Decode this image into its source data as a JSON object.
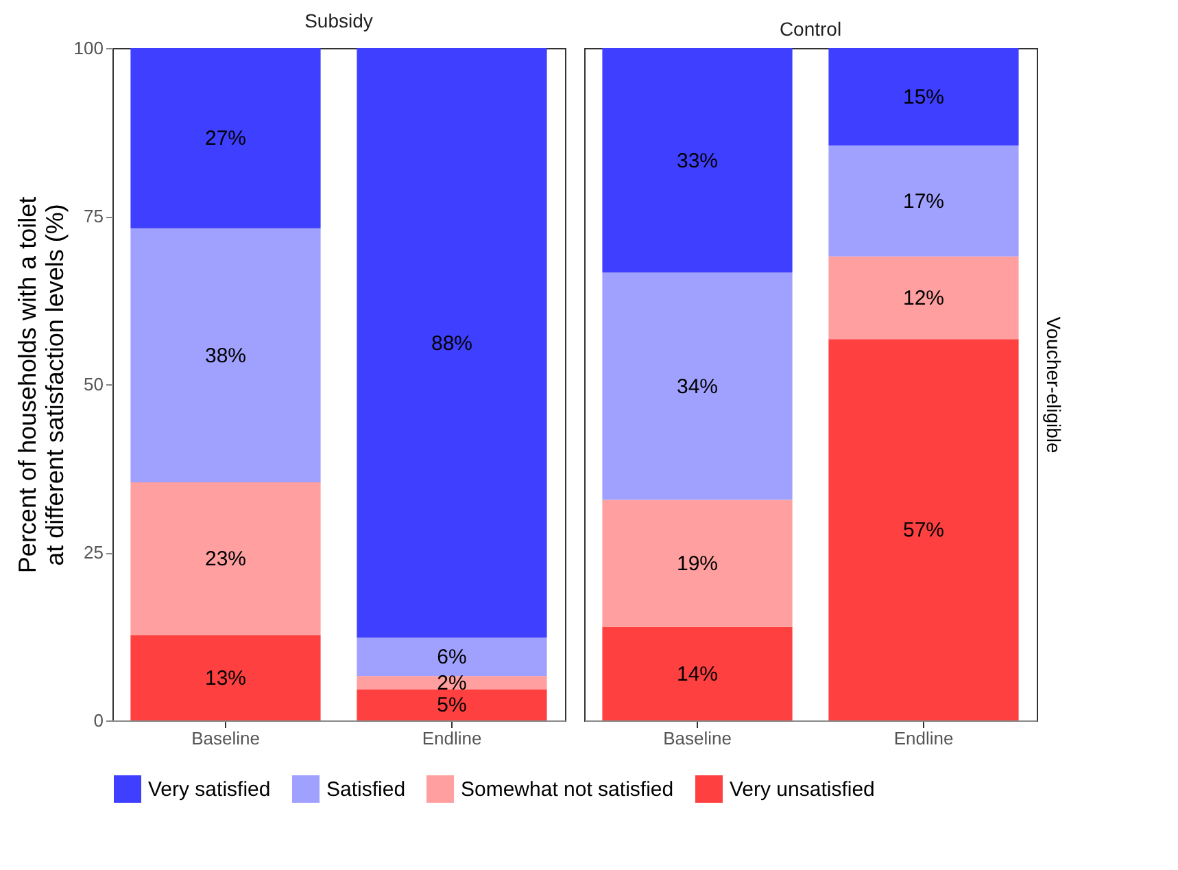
{
  "chart_data": [
    {
      "type": "bar",
      "title": "Subsidy",
      "ylabel": "Percent of households with a toilet\nat different satisfaction levels (%)",
      "categories": [
        "Baseline",
        "Endline"
      ],
      "stacked": true,
      "ylim": [
        0,
        100
      ],
      "yticks": [
        0,
        25,
        50,
        75,
        100
      ],
      "grid": false,
      "legend": "bottom",
      "series": [
        {
          "name": "Very unsatisfied",
          "color": "#ff4040",
          "values": [
            12.7,
            4.6
          ],
          "value_labels": [
            "13%",
            "5%"
          ]
        },
        {
          "name": "Somewhat not satisfied",
          "color": "#ff9f9f",
          "values": [
            22.7,
            2.0
          ],
          "value_labels": [
            "23%",
            "2%"
          ]
        },
        {
          "name": "Satisfied",
          "color": "#a0a0ff",
          "values": [
            37.8,
            5.7
          ],
          "value_labels": [
            "38%",
            "6%"
          ]
        },
        {
          "name": "Very satisfied",
          "color": "#3f3fff",
          "values": [
            26.8,
            87.7
          ],
          "value_labels": [
            "27%",
            "88%"
          ]
        }
      ]
    },
    {
      "type": "bar",
      "title": "Control",
      "y2label": "Voucher-eligible",
      "categories": [
        "Baseline",
        "Endline"
      ],
      "stacked": true,
      "ylim": [
        0,
        100
      ],
      "yticks": [
        0,
        25,
        50,
        75,
        100
      ],
      "grid": false,
      "legend": "bottom",
      "tick_labels": "x",
      "series": [
        {
          "name": "Very unsatisfied",
          "color": "#ff4040",
          "values": [
            13.9,
            56.7
          ],
          "value_labels": [
            "14%",
            "57%"
          ]
        },
        {
          "name": "Somewhat not satisfied",
          "color": "#ff9f9f",
          "values": [
            18.9,
            12.3
          ],
          "value_labels": [
            "19%",
            "12%"
          ]
        },
        {
          "name": "Satisfied",
          "color": "#a0a0ff",
          "values": [
            33.8,
            16.5
          ],
          "value_labels": [
            "34%",
            "17%"
          ]
        },
        {
          "name": "Very satisfied",
          "color": "#3f3fff",
          "values": [
            33.4,
            14.5
          ],
          "value_labels": [
            "33%",
            "15%"
          ]
        }
      ]
    }
  ]
}
